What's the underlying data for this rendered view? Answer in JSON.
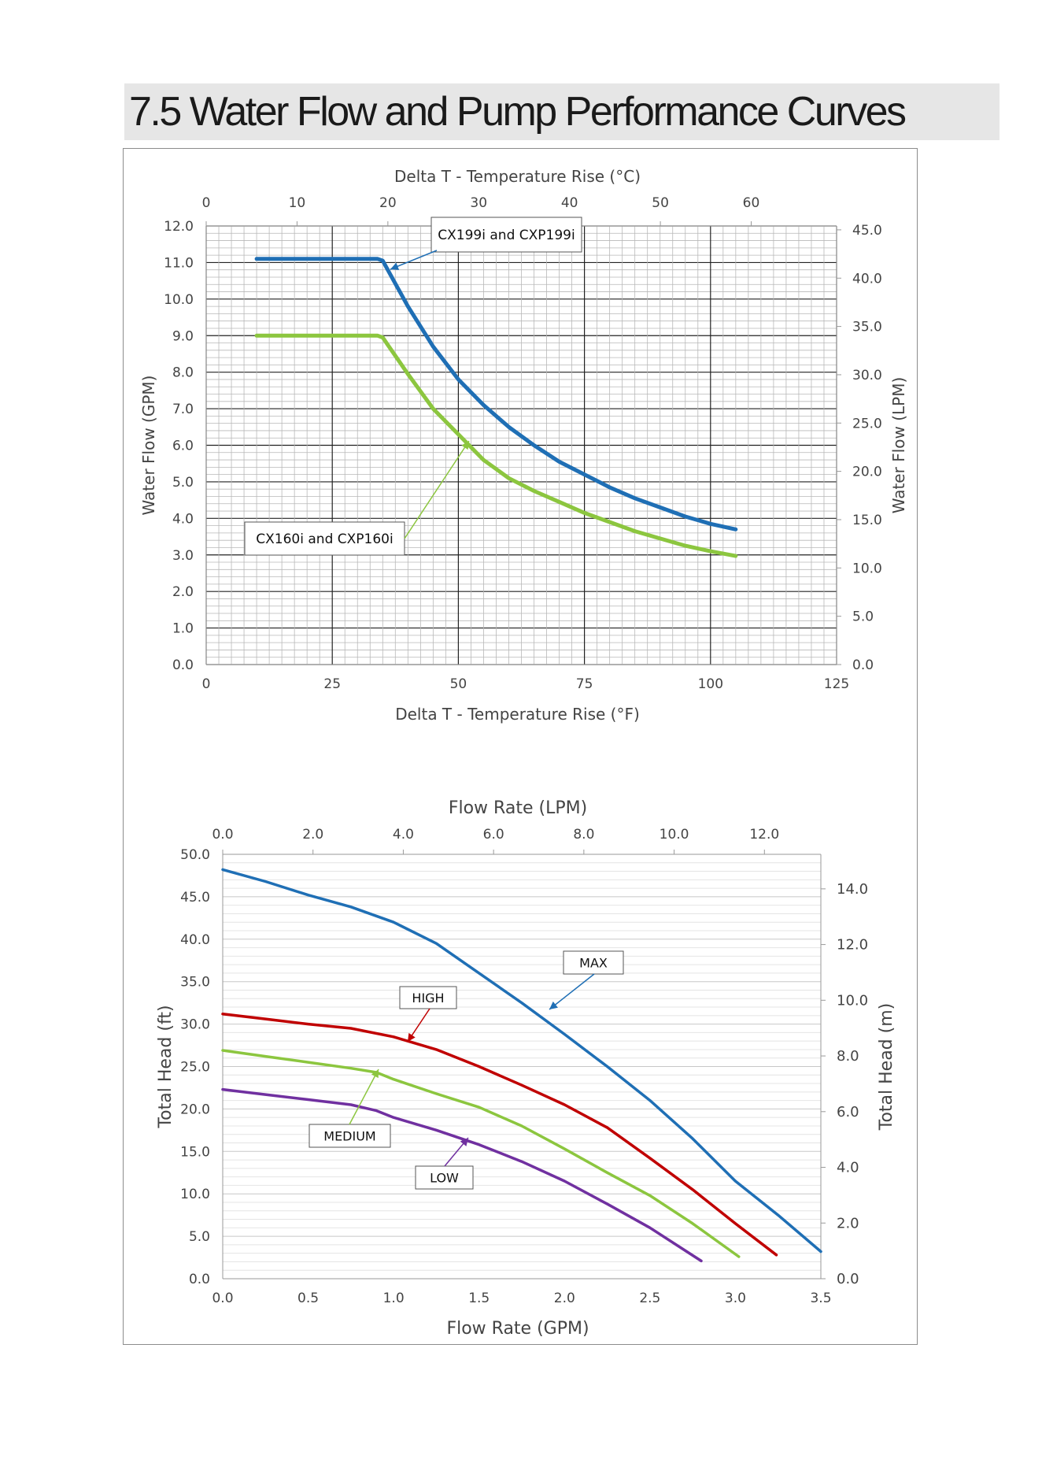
{
  "page": {
    "title": "7.5  Water Flow and Pump Performance Curves"
  },
  "chart_data": [
    {
      "type": "line",
      "xlabel": "Delta T - Temperature Rise (°F)",
      "x2label": "Delta T - Temperature Rise (°C)",
      "ylabel": "Water Flow (GPM)",
      "y2label": "Water Flow (LPM)",
      "xlim": [
        0,
        125
      ],
      "x2lim": [
        0,
        69.4
      ],
      "ylim": [
        0,
        12
      ],
      "y2lim": [
        0,
        45.4
      ],
      "xticks": [
        "0",
        "25",
        "50",
        "75",
        "100",
        "125"
      ],
      "x2ticks": [
        "0",
        "10",
        "20",
        "30",
        "40",
        "50",
        "60"
      ],
      "yticks": [
        "0.0",
        "1.0",
        "2.0",
        "3.0",
        "4.0",
        "5.0",
        "6.0",
        "7.0",
        "8.0",
        "9.0",
        "10.0",
        "11.0",
        "12.0"
      ],
      "y2ticks": [
        "0.0",
        "5.0",
        "10.0",
        "15.0",
        "20.0",
        "25.0",
        "30.0",
        "35.0",
        "40.0",
        "45.0"
      ],
      "grid": true,
      "series": [
        {
          "name": "CX199i and CXP199i",
          "color": "#1f6fb5",
          "x": [
            10,
            20,
            30,
            34,
            35,
            36,
            38,
            40,
            45,
            50,
            55,
            60,
            65,
            70,
            75,
            80,
            85,
            90,
            95,
            100,
            105
          ],
          "y": [
            11.1,
            11.1,
            11.1,
            11.1,
            11.05,
            10.8,
            10.3,
            9.8,
            8.7,
            7.8,
            7.1,
            6.5,
            6.0,
            5.55,
            5.2,
            4.85,
            4.55,
            4.3,
            4.05,
            3.85,
            3.7
          ]
        },
        {
          "name": "CX160i and CXP160i",
          "color": "#8cc63f",
          "x": [
            10,
            20,
            30,
            34,
            35,
            36,
            38,
            40,
            45,
            50,
            55,
            60,
            65,
            70,
            75,
            80,
            85,
            90,
            95,
            100,
            105
          ],
          "y": [
            9.0,
            9.0,
            9.0,
            9.0,
            8.95,
            8.75,
            8.35,
            7.95,
            7.0,
            6.3,
            5.6,
            5.1,
            4.75,
            4.45,
            4.15,
            3.9,
            3.65,
            3.45,
            3.25,
            3.1,
            2.97
          ]
        }
      ],
      "annotations": [
        "CX199i and CXP199i",
        "CX160i and CXP160i"
      ]
    },
    {
      "type": "line",
      "xlabel": "Flow Rate (GPM)",
      "x2label": "Flow Rate (LPM)",
      "ylabel": "Total Head (ft)",
      "y2label": "Total Head (m)",
      "xlim": [
        0,
        3.5
      ],
      "x2lim": [
        0,
        13.25
      ],
      "ylim": [
        0,
        50
      ],
      "y2lim": [
        0,
        15.24
      ],
      "xticks": [
        "0.0",
        "0.5",
        "1.0",
        "1.5",
        "2.0",
        "2.5",
        "3.0",
        "3.5"
      ],
      "x2ticks": [
        "0.0",
        "2.0",
        "4.0",
        "6.0",
        "8.0",
        "10.0",
        "12.0"
      ],
      "yticks": [
        "0.0",
        "5.0",
        "10.0",
        "15.0",
        "20.0",
        "25.0",
        "30.0",
        "35.0",
        "40.0",
        "45.0",
        "50.0"
      ],
      "y2ticks": [
        "0.0",
        "2.0",
        "4.0",
        "6.0",
        "8.0",
        "10.0",
        "12.0",
        "14.0"
      ],
      "grid": true,
      "series": [
        {
          "name": "MAX",
          "color": "#1f6fb5",
          "x": [
            0,
            0.25,
            0.5,
            0.75,
            1.0,
            1.25,
            1.5,
            1.75,
            2.0,
            2.25,
            2.5,
            2.75,
            3.0,
            3.25,
            3.5
          ],
          "y": [
            48.2,
            46.8,
            45.2,
            43.8,
            42.0,
            39.5,
            36.0,
            32.5,
            28.8,
            25.0,
            21.0,
            16.5,
            11.5,
            7.5,
            3.2
          ]
        },
        {
          "name": "HIGH",
          "color": "#c00000",
          "x": [
            0,
            0.25,
            0.5,
            0.75,
            1.0,
            1.25,
            1.5,
            1.75,
            2.0,
            2.25,
            2.5,
            2.75,
            3.0,
            3.24
          ],
          "y": [
            31.2,
            30.6,
            30.0,
            29.5,
            28.5,
            27.0,
            25.0,
            22.8,
            20.5,
            17.8,
            14.2,
            10.5,
            6.5,
            2.8
          ]
        },
        {
          "name": "MEDIUM",
          "color": "#8cc63f",
          "x": [
            0,
            0.25,
            0.5,
            0.75,
            0.9,
            1.0,
            1.25,
            1.5,
            1.75,
            2.0,
            2.25,
            2.5,
            2.75,
            3.02
          ],
          "y": [
            26.9,
            26.2,
            25.5,
            24.8,
            24.3,
            23.5,
            21.8,
            20.2,
            18.0,
            15.3,
            12.5,
            9.8,
            6.5,
            2.6
          ]
        },
        {
          "name": "LOW",
          "color": "#7030a0",
          "x": [
            0,
            0.25,
            0.5,
            0.75,
            0.9,
            1.0,
            1.25,
            1.5,
            1.75,
            2.0,
            2.25,
            2.5,
            2.8
          ],
          "y": [
            22.3,
            21.7,
            21.1,
            20.5,
            19.8,
            19.0,
            17.5,
            15.8,
            13.8,
            11.5,
            8.8,
            6.0,
            2.1
          ]
        }
      ],
      "annotations": [
        "MAX",
        "HIGH",
        "MEDIUM",
        "LOW"
      ]
    }
  ]
}
